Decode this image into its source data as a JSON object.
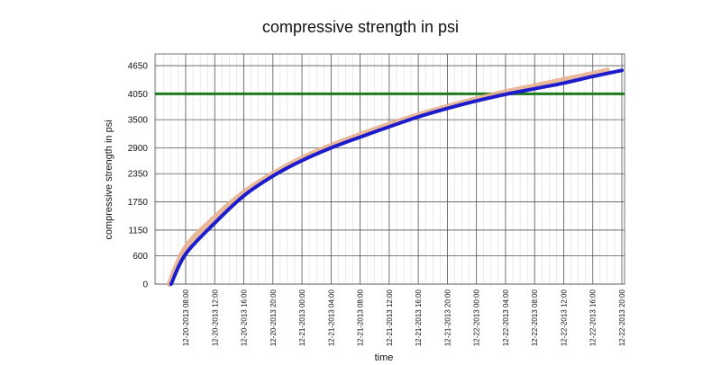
{
  "chart_data": {
    "type": "line",
    "title": "compressive strength in psi",
    "xlabel": "time",
    "ylabel": "compressive strength in psi",
    "grid": true,
    "legend": "none",
    "yticks": [
      0,
      600,
      1150,
      1750,
      2350,
      2900,
      3500,
      4050,
      4650
    ],
    "ylim": [
      0,
      4900
    ],
    "xticks": [
      "12-20-2013 08:00",
      "12-20-2013 12:00",
      "12-20-2013 16:00",
      "12-20-2013 20:00",
      "12-21-2013 00:00",
      "12-21-2013 04:00",
      "12-21-2013 08:00",
      "12-21-2013 12:00",
      "12-21-2013 16:00",
      "12-21-2013 20:00",
      "12-22-2013 00:00",
      "12-22-2013 04:00",
      "12-22-2013 08:00",
      "12-22-2013 12:00",
      "12-22-2013 16:00",
      "12-22-2013 20:00"
    ],
    "threshold": {
      "value": 4050,
      "color": "#1e7a1e"
    },
    "series": [
      {
        "color": "#e8b090",
        "x": [
          "12-20-2013 05:45",
          "12-20-2013 08:00",
          "12-20-2013 12:00",
          "12-20-2013 16:00",
          "12-20-2013 20:00",
          "12-21-2013 00:00",
          "12-21-2013 04:00",
          "12-21-2013 08:00",
          "12-21-2013 12:00",
          "12-21-2013 16:00",
          "12-21-2013 20:00",
          "12-22-2013 00:00",
          "12-22-2013 04:00",
          "12-22-2013 08:00",
          "12-22-2013 12:00",
          "12-22-2013 16:00",
          "12-22-2013 18:00"
        ],
        "values": [
          0,
          780,
          1420,
          1950,
          2350,
          2680,
          2950,
          3180,
          3400,
          3600,
          3780,
          3940,
          4090,
          4220,
          4350,
          4480,
          4550
        ]
      },
      {
        "color": "#1c1ccc",
        "x": [
          "12-20-2013 06:00",
          "12-20-2013 08:00",
          "12-20-2013 12:00",
          "12-20-2013 16:00",
          "12-20-2013 20:00",
          "12-21-2013 00:00",
          "12-21-2013 04:00",
          "12-21-2013 08:00",
          "12-21-2013 12:00",
          "12-21-2013 16:00",
          "12-21-2013 20:00",
          "12-22-2013 00:00",
          "12-22-2013 04:00",
          "12-22-2013 08:00",
          "12-22-2013 12:00",
          "12-22-2013 16:00",
          "12-22-2013 20:00"
        ],
        "values": [
          0,
          640,
          1300,
          1880,
          2300,
          2630,
          2900,
          3130,
          3350,
          3560,
          3740,
          3900,
          4040,
          4160,
          4280,
          4420,
          4550
        ]
      }
    ]
  }
}
